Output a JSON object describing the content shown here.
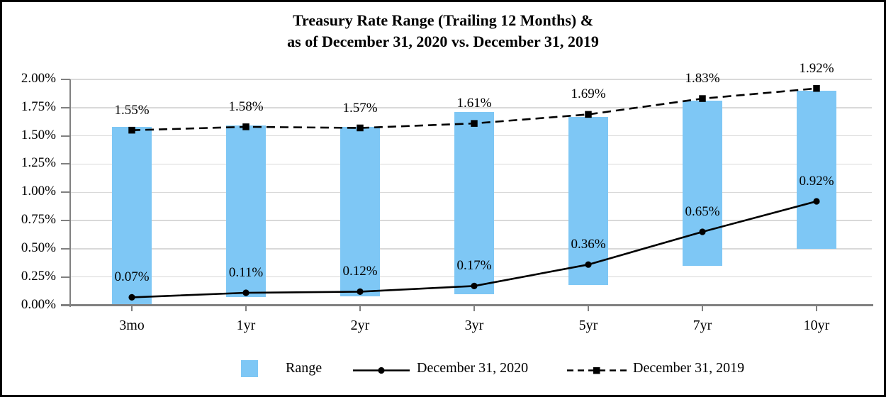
{
  "title": {
    "line1": "Treasury Rate Range (Trailing 12 Months) &",
    "line2": "as of December 31, 2020 vs. December 31, 2019"
  },
  "colors": {
    "bar_fill": "#7EC7F5",
    "grid": "#D9D9D9",
    "axis": "#808080",
    "line": "#000000",
    "text": "#000000"
  },
  "axes": {
    "y_tick_labels": [
      "2.00%",
      "1.75%",
      "1.50%",
      "1.25%",
      "1.00%",
      "0.75%",
      "0.50%",
      "0.25%",
      "0.00%"
    ],
    "y_max": 2.0,
    "y_min": 0.0,
    "y_step": 0.25,
    "x_categories": [
      "3mo",
      "1yr",
      "2yr",
      "3yr",
      "5yr",
      "7yr",
      "10yr"
    ]
  },
  "chart_data": {
    "type": "combo-bar-line",
    "title": "Treasury Rate Range (Trailing 12 Months) & as of December 31, 2020 vs. December 31, 2019",
    "categories": [
      "3mo",
      "1yr",
      "2yr",
      "3yr",
      "5yr",
      "7yr",
      "10yr"
    ],
    "ylim": [
      0.0,
      2.0
    ],
    "grid": true,
    "legend_position": "bottom",
    "series": [
      {
        "name": "Range",
        "type": "bar",
        "lows": [
          0.0,
          0.07,
          0.08,
          0.1,
          0.18,
          0.35,
          0.5
        ],
        "highs": [
          1.58,
          1.59,
          1.58,
          1.71,
          1.67,
          1.81,
          1.9
        ]
      },
      {
        "name": "December 31, 2020",
        "type": "line",
        "style": "solid",
        "marker": "circle",
        "values": [
          0.07,
          0.11,
          0.12,
          0.17,
          0.36,
          0.65,
          0.92
        ],
        "labels": [
          "0.07%",
          "0.11%",
          "0.12%",
          "0.17%",
          "0.36%",
          "0.65%",
          "0.92%"
        ]
      },
      {
        "name": "December 31, 2019",
        "type": "line",
        "style": "dashed",
        "marker": "square",
        "values": [
          1.55,
          1.58,
          1.57,
          1.61,
          1.69,
          1.83,
          1.92
        ],
        "labels": [
          "1.55%",
          "1.58%",
          "1.57%",
          "1.61%",
          "1.69%",
          "1.83%",
          "1.92%"
        ]
      }
    ]
  },
  "legend": {
    "range_label": "Range",
    "dec2020_label": "December 31, 2020",
    "dec2019_label": "December 31, 2019"
  }
}
